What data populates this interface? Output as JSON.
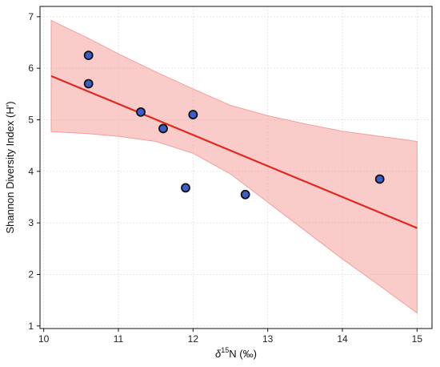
{
  "chart_data": {
    "type": "scatter",
    "title": "",
    "xlabel_prefix": "δ",
    "xlabel_sup": "15",
    "xlabel_suffix": "N (‰)",
    "ylabel": "Shannon Diversity Index (H')",
    "xlim": [
      9.95,
      15.2
    ],
    "ylim": [
      0.95,
      7.2
    ],
    "xticks": [
      10,
      11,
      12,
      13,
      14,
      15
    ],
    "yticks": [
      1,
      2,
      3,
      4,
      5,
      6,
      7
    ],
    "xtick_labels": [
      "10",
      "11",
      "12",
      "13",
      "14",
      "15"
    ],
    "ytick_labels": [
      "1",
      "2",
      "3",
      "4",
      "5",
      "6",
      "7"
    ],
    "grid": true,
    "legend": "none",
    "points": [
      {
        "x": 10.6,
        "y": 6.25
      },
      {
        "x": 10.6,
        "y": 5.7
      },
      {
        "x": 11.3,
        "y": 5.15
      },
      {
        "x": 11.6,
        "y": 4.83
      },
      {
        "x": 12.0,
        "y": 5.1
      },
      {
        "x": 11.9,
        "y": 3.68
      },
      {
        "x": 12.7,
        "y": 3.55
      },
      {
        "x": 14.5,
        "y": 3.85
      }
    ],
    "fit_line": {
      "x": [
        10.1,
        15.0
      ],
      "y": [
        5.85,
        2.9
      ]
    },
    "confidence_band": {
      "x": [
        10.1,
        10.6,
        11.0,
        11.5,
        12.0,
        12.5,
        13.0,
        13.5,
        14.0,
        14.5,
        15.0
      ],
      "upper": [
        6.93,
        6.58,
        6.28,
        5.93,
        5.6,
        5.28,
        5.08,
        4.92,
        4.78,
        4.68,
        4.58
      ],
      "lower": [
        4.77,
        4.73,
        4.68,
        4.58,
        4.35,
        3.95,
        3.4,
        2.85,
        2.3,
        1.78,
        1.25
      ]
    },
    "colors": {
      "point_fill": "#3a5fcd",
      "point_edge": "#111111",
      "line": "#e0281e",
      "band": "#f4a09c",
      "grid": "#e6e6e6"
    }
  }
}
